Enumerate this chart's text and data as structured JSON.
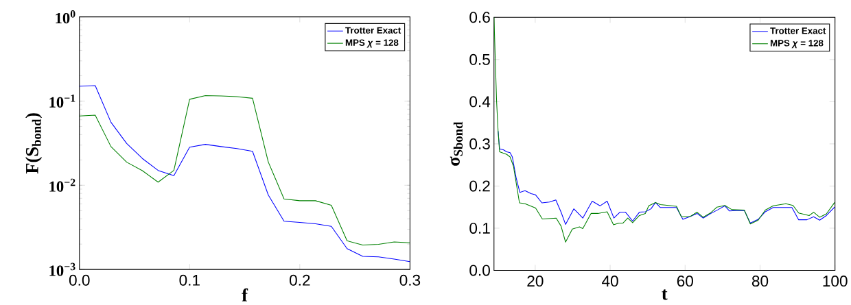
{
  "chart_data": [
    {
      "type": "line",
      "xlabel": "f",
      "ylabel": "F(S$_{bond}$)",
      "log": "y",
      "grid": false,
      "legend": "top right",
      "marker": "none",
      "line_style": "solid",
      "xlim": [
        0,
        0.3
      ],
      "ylim": [
        0.001,
        1
      ],
      "xticks": [
        {
          "value": 0,
          "label": "0.0"
        },
        0.1,
        0.2,
        0.3
      ],
      "yticks": [
        {
          "value": 0.001,
          "label": "10$^{−3}$"
        },
        {
          "value": 0.01,
          "label": "10$^{−2}$"
        },
        {
          "value": 0.1,
          "label": "10$^{−1}$"
        },
        {
          "value": 1,
          "label": "10$^{0}$"
        }
      ],
      "x": [
        0,
        0.0143,
        0.0286,
        0.0429,
        0.0571,
        0.0714,
        0.0857,
        0.1,
        0.1143,
        0.1286,
        0.1429,
        0.1571,
        0.1714,
        0.1857,
        0.2,
        0.2143,
        0.2286,
        0.2429,
        0.2571,
        0.2714,
        0.2857,
        0.3
      ],
      "series": [
        {
          "name": "Trotter Exact",
          "color": "#0000ff",
          "values": [
            0.15,
            0.153,
            0.056,
            0.0313,
            0.0208,
            0.015,
            0.013,
            0.0283,
            0.0306,
            0.0288,
            0.0273,
            0.0253,
            0.00767,
            0.00374,
            0.00362,
            0.00349,
            0.00325,
            0.00177,
            0.00143,
            0.00141,
            0.00133,
            0.00124
          ]
        },
        {
          "name": "MPS *χ* = 128",
          "color": "#008000",
          "values": [
            0.0664,
            0.0681,
            0.0288,
            0.0188,
            0.0149,
            0.0109,
            0.015,
            0.105,
            0.116,
            0.115,
            0.113,
            0.108,
            0.0189,
            0.00689,
            0.00655,
            0.00655,
            0.00578,
            0.00219,
            0.00195,
            0.00199,
            0.00212,
            0.00207
          ]
        }
      ]
    },
    {
      "type": "line",
      "xlabel": "t",
      "ylabel": "σ$_{Sbond}$",
      "grid": false,
      "legend": "top right",
      "marker": "none",
      "line_style": "solid",
      "xlim": [
        9,
        100
      ],
      "ylim": [
        0,
        0.6
      ],
      "xticks": [
        20,
        40,
        60,
        80,
        100
      ],
      "yticks": [
        {
          "value": 0,
          "label": "0.0"
        },
        0.1,
        0.2,
        0.3,
        0.4,
        0.5,
        0.6
      ],
      "series": [
        {
          "name": "Trotter Exact",
          "color": "#0000ff",
          "x": [
            10.1,
            10.5,
            11.5,
            12.4,
            13.3,
            13.9,
            14.9,
            15.9,
            17.3,
            18.9,
            20.1,
            21.8,
            23.8,
            25.5,
            26.9,
            28.1,
            30.3,
            32.7,
            35.2,
            37.3,
            39.2,
            41.0,
            42.6,
            44.1,
            46.0,
            47.8,
            49.4,
            50.9,
            52.1,
            53.4,
            57.7,
            59.4,
            61.4,
            63.2,
            64.8,
            66.9,
            68.8,
            70.6,
            71.8,
            73.7,
            75.8,
            77.4,
            79.5,
            81.4,
            83.5,
            88.5,
            90.3,
            92.5,
            94.3,
            95.9,
            97.7,
            99.9
          ],
          "values": [
            0.33,
            0.288,
            0.286,
            0.281,
            0.279,
            0.269,
            0.22,
            0.185,
            0.189,
            0.182,
            0.179,
            0.16,
            0.162,
            0.167,
            0.138,
            0.109,
            0.146,
            0.124,
            0.164,
            0.153,
            0.164,
            0.124,
            0.138,
            0.138,
            0.117,
            0.138,
            0.139,
            0.146,
            0.161,
            0.149,
            0.149,
            0.121,
            0.128,
            0.135,
            0.124,
            0.135,
            0.144,
            0.153,
            0.141,
            0.142,
            0.142,
            0.112,
            0.121,
            0.139,
            0.149,
            0.149,
            0.12,
            0.12,
            0.127,
            0.119,
            0.13,
            0.15
          ]
        },
        {
          "name": "MPS *χ* = 128",
          "color": "#008000",
          "x": [
            9,
            9.7,
            10.1,
            10.5,
            12.4,
            13.3,
            14.2,
            15.8,
            17.3,
            20.1,
            21.9,
            25.6,
            26.9,
            28.1,
            29.9,
            31.8,
            32.7,
            34.9,
            36.7,
            39.2,
            40.9,
            42.3,
            43.4,
            44.7,
            46.0,
            47.8,
            49.4,
            50.3,
            52.1,
            53.4,
            57.7,
            59.0,
            61.4,
            63.2,
            64.8,
            66.9,
            68.5,
            70.6,
            72.5,
            75.8,
            77.4,
            79.5,
            81.4,
            83.5,
            86.9,
            88.8,
            90.3,
            93.1,
            94.3,
            95.9,
            97.7,
            99.9
          ],
          "values": [
            0.6,
            0.4,
            0.33,
            0.281,
            0.275,
            0.269,
            0.247,
            0.16,
            0.158,
            0.148,
            0.122,
            0.124,
            0.105,
            0.067,
            0.098,
            0.103,
            0.099,
            0.135,
            0.135,
            0.139,
            0.108,
            0.112,
            0.112,
            0.124,
            0.113,
            0.13,
            0.135,
            0.153,
            0.161,
            0.156,
            0.152,
            0.127,
            0.128,
            0.138,
            0.126,
            0.137,
            0.15,
            0.154,
            0.144,
            0.143,
            0.11,
            0.119,
            0.143,
            0.153,
            0.158,
            0.154,
            0.136,
            0.13,
            0.138,
            0.126,
            0.134,
            0.161
          ]
        }
      ]
    }
  ]
}
